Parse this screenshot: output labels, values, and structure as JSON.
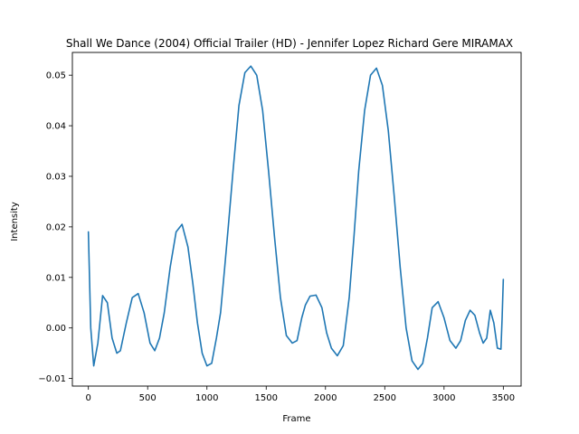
{
  "chart_data": {
    "type": "line",
    "title": "Shall We Dance (2004)  Official Trailer (HD) - Jennifer Lopez Richard Gere  MIRAMAX",
    "xlabel": "Frame",
    "ylabel": "Intensity",
    "xlim": [
      -135,
      3650
    ],
    "ylim": [
      -0.0115,
      0.0545
    ],
    "xticks": [
      0,
      500,
      1000,
      1500,
      2000,
      2500,
      3000,
      3500
    ],
    "xtick_labels": [
      "0",
      "500",
      "1000",
      "1500",
      "2000",
      "2500",
      "3000",
      "3500"
    ],
    "yticks": [
      -0.01,
      0.0,
      0.01,
      0.02,
      0.03,
      0.04,
      0.05
    ],
    "ytick_labels": [
      "−0.01",
      "0.00",
      "0.01",
      "0.02",
      "0.03",
      "0.04",
      "0.05"
    ],
    "grid": false,
    "legend": "none",
    "line_color": "#1f77b4",
    "series": [
      {
        "x": [
          0,
          20,
          45,
          80,
          120,
          160,
          200,
          240,
          270,
          320,
          370,
          420,
          470,
          520,
          560,
          600,
          640,
          690,
          740,
          790,
          840,
          880,
          920,
          960,
          1000,
          1040,
          1080,
          1115,
          1150,
          1180,
          1220,
          1270,
          1320,
          1370,
          1420,
          1470,
          1520,
          1570,
          1620,
          1670,
          1720,
          1760,
          1800,
          1830,
          1870,
          1920,
          1970,
          2010,
          2050,
          2100,
          2150,
          2200,
          2240,
          2280,
          2330,
          2380,
          2430,
          2480,
          2530,
          2580,
          2630,
          2680,
          2730,
          2780,
          2820,
          2860,
          2900,
          2950,
          3000,
          3050,
          3100,
          3140,
          3180,
          3220,
          3260,
          3300,
          3330,
          3360,
          3390,
          3420,
          3450,
          3480,
          3490,
          3500
        ],
        "y": [
          0.019,
          0.0,
          -0.0075,
          -0.003,
          0.0064,
          0.005,
          -0.002,
          -0.005,
          -0.0045,
          0.001,
          0.006,
          0.0068,
          0.003,
          -0.003,
          -0.0045,
          -0.002,
          0.003,
          0.012,
          0.019,
          0.0205,
          0.016,
          0.009,
          0.001,
          -0.005,
          -0.0075,
          -0.007,
          -0.002,
          0.003,
          0.012,
          0.02,
          0.031,
          0.044,
          0.0505,
          0.0518,
          0.05,
          0.043,
          0.031,
          0.018,
          0.006,
          -0.0015,
          -0.003,
          -0.0025,
          0.002,
          0.0045,
          0.0063,
          0.0065,
          0.004,
          -0.001,
          -0.004,
          -0.0055,
          -0.0035,
          0.006,
          0.018,
          0.031,
          0.043,
          0.05,
          0.0514,
          0.048,
          0.039,
          0.026,
          0.012,
          0.0,
          -0.0065,
          -0.0082,
          -0.007,
          -0.002,
          0.004,
          0.0052,
          0.002,
          -0.0025,
          -0.004,
          -0.0025,
          0.0015,
          0.0035,
          0.0025,
          -0.001,
          -0.003,
          -0.002,
          0.0035,
          0.001,
          -0.004,
          -0.0042,
          0.002,
          0.0096
        ]
      }
    ]
  }
}
